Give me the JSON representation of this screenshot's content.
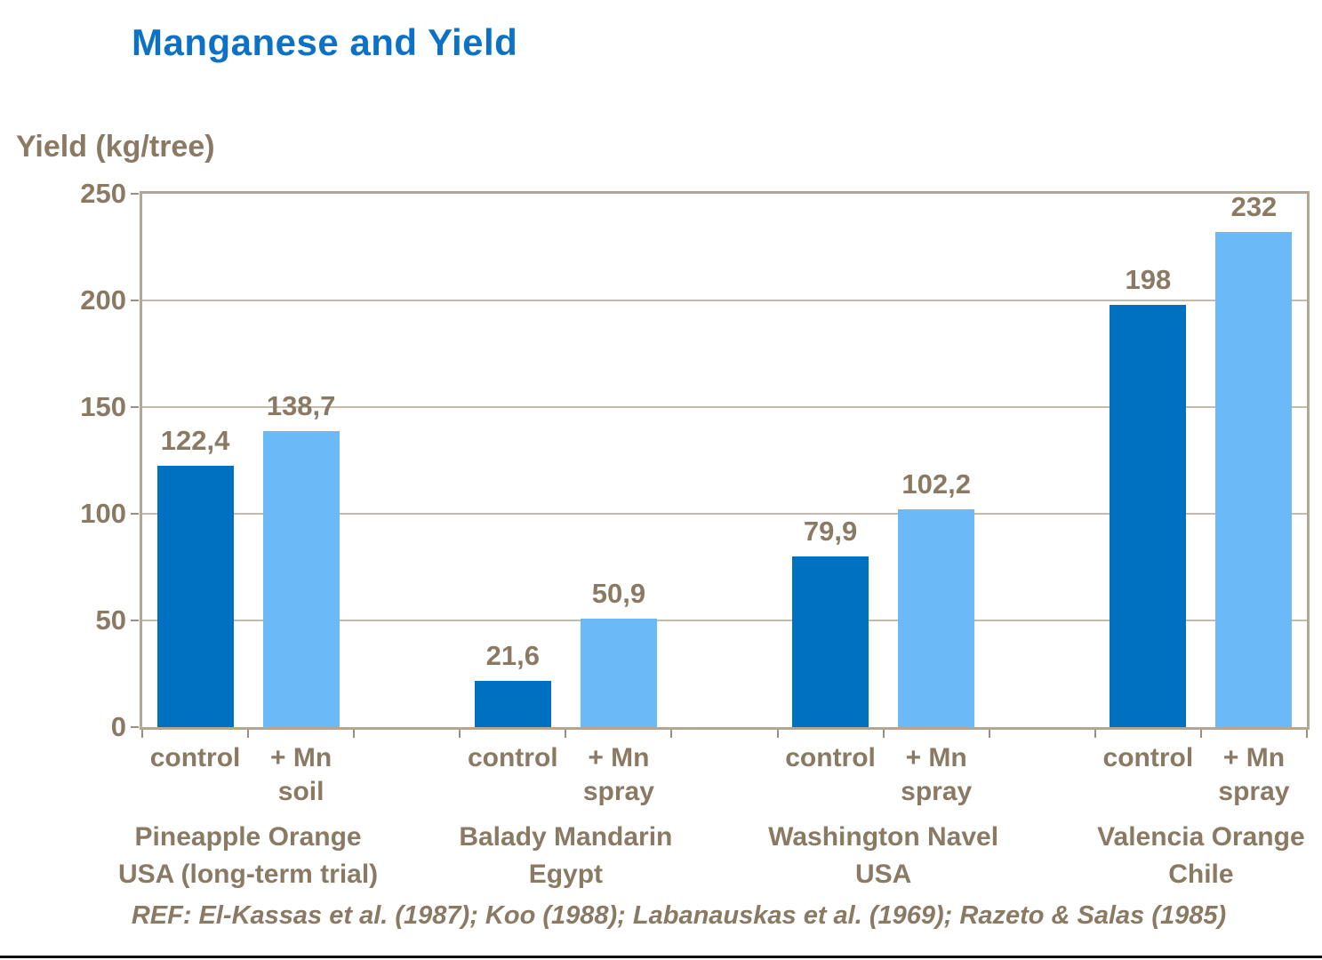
{
  "page": {
    "title": "Manganese and Yield"
  },
  "colors": {
    "title_blue": "#0d72c6",
    "text_brown": "#8a7963",
    "control_bar": "#0070c0",
    "mn_bar": "#6cb9f8",
    "grid": "#c6bbab",
    "plot_border": "#b2a695",
    "bottom_rule": "#101010"
  },
  "chart_data": {
    "type": "bar",
    "title": "Manganese and Yield",
    "xlabel": "",
    "ylabel": "Yield (kg/tree)",
    "ylim": [
      0,
      250
    ],
    "yticks": [
      0,
      50,
      100,
      150,
      200,
      250
    ],
    "grid": true,
    "legend_position": "none",
    "series": [
      {
        "name": "control",
        "color": "#0070c0"
      },
      {
        "name": "+ Mn",
        "color": "#6cb9f8"
      }
    ],
    "groups": [
      {
        "name_lines": [
          "Pineapple Orange",
          "USA (long-term trial)"
        ],
        "bars": [
          {
            "series": "control",
            "label": "control",
            "sublabel": "",
            "value": 122.4,
            "display": "122,4"
          },
          {
            "series": "mn",
            "label": "+ Mn",
            "sublabel": "soil",
            "value": 138.7,
            "display": "138,7"
          }
        ]
      },
      {
        "name_lines": [
          "Balady Mandarin",
          "Egypt"
        ],
        "bars": [
          {
            "series": "control",
            "label": "control",
            "sublabel": "",
            "value": 21.6,
            "display": "21,6"
          },
          {
            "series": "mn",
            "label": "+ Mn",
            "sublabel": "spray",
            "value": 50.9,
            "display": "50,9"
          }
        ]
      },
      {
        "name_lines": [
          "Washington Navel",
          "USA"
        ],
        "bars": [
          {
            "series": "control",
            "label": "control",
            "sublabel": "",
            "value": 79.9,
            "display": "79,9"
          },
          {
            "series": "mn",
            "label": "+ Mn",
            "sublabel": "spray",
            "value": 102.2,
            "display": "102,2"
          }
        ]
      },
      {
        "name_lines": [
          "Valencia Orange",
          "Chile"
        ],
        "bars": [
          {
            "series": "control",
            "label": "control",
            "sublabel": "",
            "value": 198,
            "display": "198"
          },
          {
            "series": "mn",
            "label": "+ Mn",
            "sublabel": "spray",
            "value": 232,
            "display": "232"
          }
        ]
      }
    ]
  },
  "footer": {
    "ref": "REF: El-Kassas et al. (1987); Koo (1988); Labanauskas et al. (1969); Razeto & Salas (1985)"
  }
}
